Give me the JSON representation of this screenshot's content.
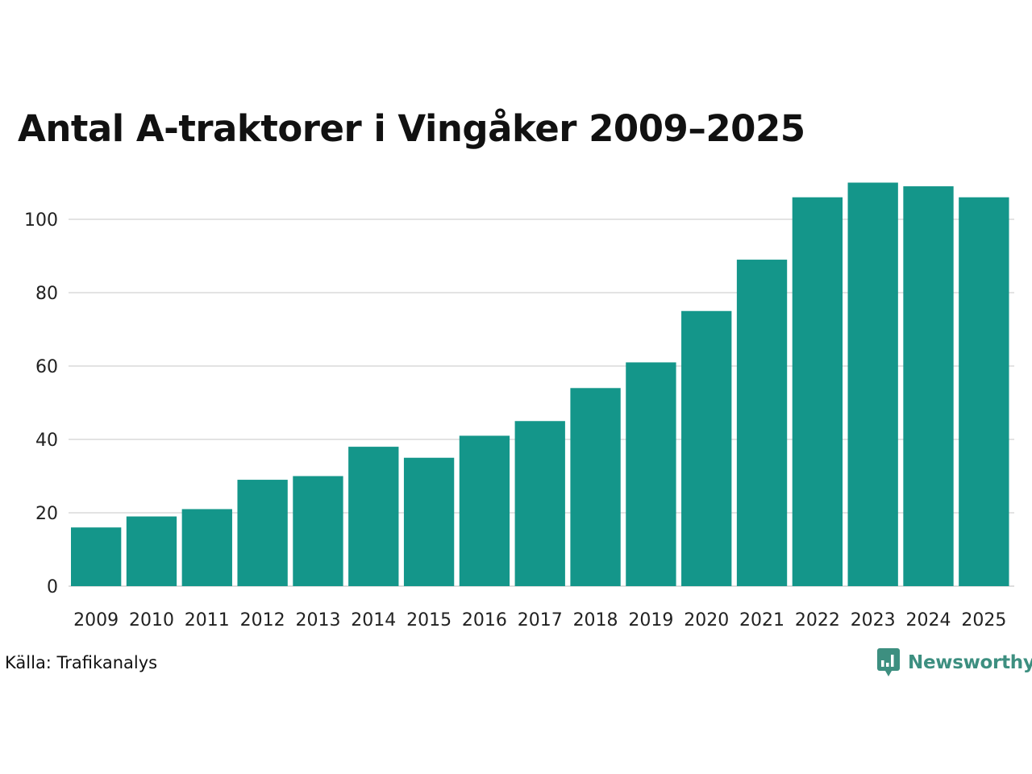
{
  "chart_data": {
    "type": "bar",
    "title": "Antal A-traktorer i Vingåker 2009–2025",
    "xlabel": "",
    "ylabel": "",
    "categories": [
      "2009",
      "2010",
      "2011",
      "2012",
      "2013",
      "2014",
      "2015",
      "2016",
      "2017",
      "2018",
      "2019",
      "2020",
      "2021",
      "2022",
      "2023",
      "2024",
      "2025"
    ],
    "values": [
      16,
      19,
      21,
      29,
      30,
      38,
      35,
      41,
      45,
      54,
      61,
      75,
      89,
      106,
      110,
      109,
      106
    ],
    "ylim": [
      0,
      110
    ],
    "yticks": [
      0,
      20,
      40,
      60,
      80,
      100
    ],
    "grid": true,
    "legend": "none",
    "colors": {
      "bar": "#14968a",
      "grid": "#e3e3e3",
      "axis": "#dddddd"
    }
  },
  "footer": {
    "source": "Källa: Trafikanalys",
    "brand": "Newsworthy",
    "brand_icon": "newsworthy-logo-icon"
  }
}
